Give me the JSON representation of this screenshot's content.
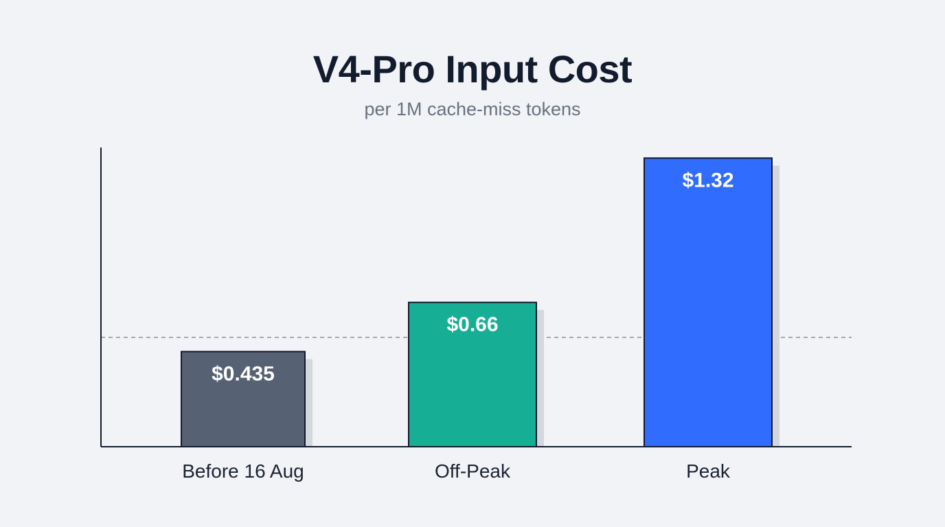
{
  "chart_data": {
    "type": "bar",
    "title": "V4-Pro Input Cost",
    "subtitle": "per 1M cache-miss tokens",
    "categories": [
      "Before 16 Aug",
      "Off-Peak",
      "Peak"
    ],
    "values": [
      0.435,
      0.66,
      1.32
    ],
    "value_labels": [
      "$0.435",
      "$0.66",
      "$1.32"
    ],
    "colors": [
      "#566173",
      "#16ae94",
      "#306cfe"
    ],
    "reference_line": {
      "value": 0.5,
      "style": "dashed"
    },
    "ylim": [
      0,
      1.34
    ],
    "xlabel": "",
    "ylabel": "",
    "grid": false,
    "legend": false
  }
}
